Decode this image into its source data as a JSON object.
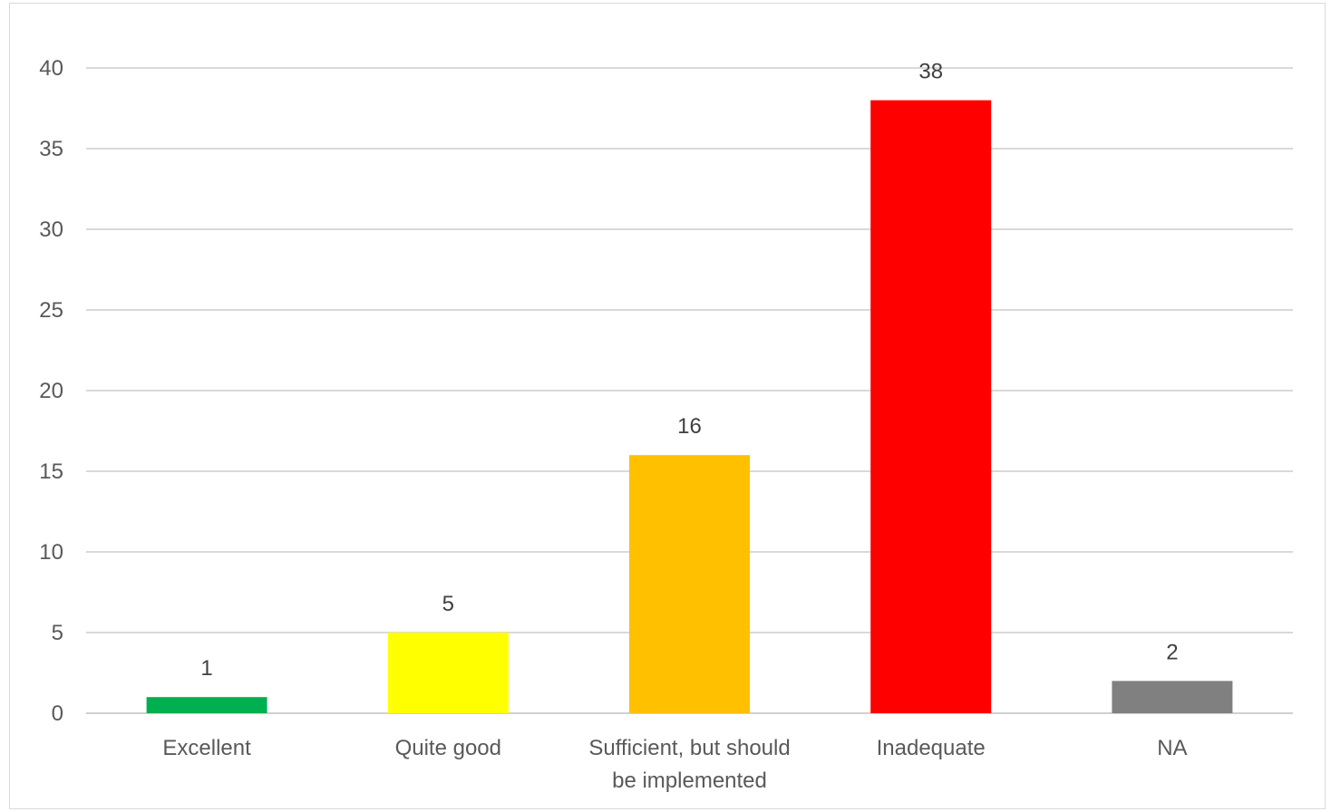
{
  "chart_data": {
    "type": "bar",
    "categories": [
      "Excellent",
      "Quite good",
      "Sufficient, but should be implemented",
      "Inadequate",
      "NA"
    ],
    "category_lines": [
      [
        "Excellent"
      ],
      [
        "Quite good"
      ],
      [
        "Sufficient, but should",
        "be implemented"
      ],
      [
        "Inadequate"
      ],
      [
        "NA"
      ]
    ],
    "values": [
      1,
      5,
      16,
      38,
      2
    ],
    "colors": [
      "#00b050",
      "#ffff00",
      "#ffc000",
      "#ff0000",
      "#808080"
    ],
    "title": "",
    "xlabel": "",
    "ylabel": "",
    "ylim": [
      0,
      40
    ],
    "yticks": [
      0,
      5,
      10,
      15,
      20,
      25,
      30,
      35,
      40
    ],
    "grid": true,
    "data_labels": true,
    "legend": "none"
  }
}
